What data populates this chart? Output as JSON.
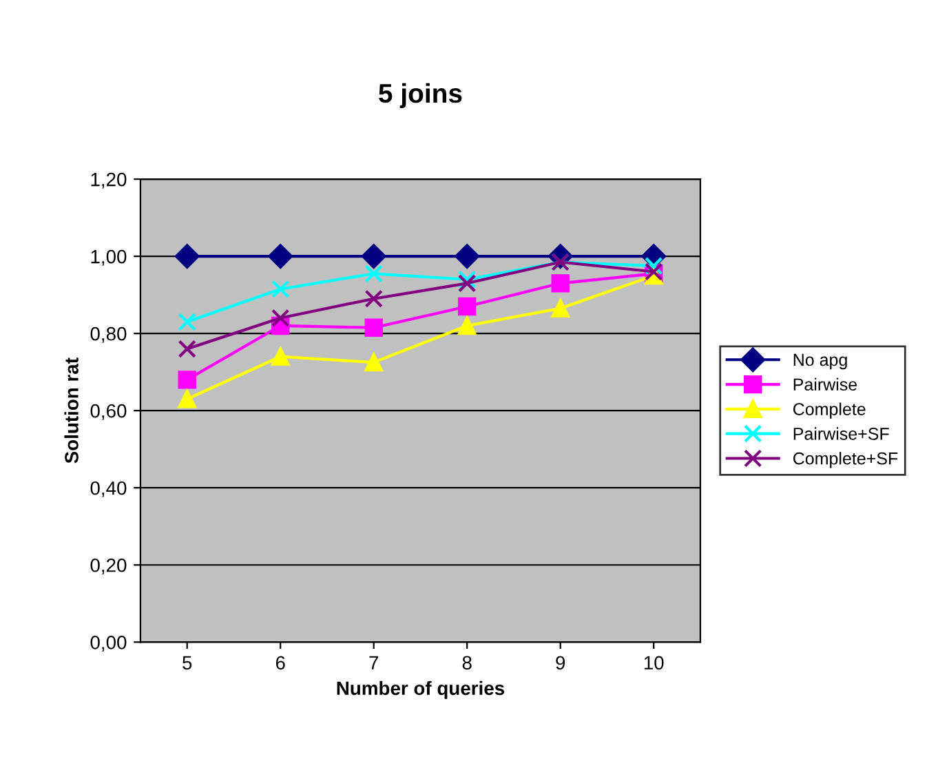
{
  "chart_data": {
    "type": "line",
    "title": "5 joins",
    "xlabel": "Number of queries",
    "ylabel": "Solution rat",
    "categories": [
      "5",
      "6",
      "7",
      "8",
      "9",
      "10"
    ],
    "series": [
      {
        "name": "No apg",
        "color": "#000080",
        "marker": "diamond",
        "values": [
          1.0,
          1.0,
          1.0,
          1.0,
          1.0,
          1.0
        ]
      },
      {
        "name": "Pairwise",
        "color": "#ff00ff",
        "marker": "square",
        "values": [
          0.68,
          0.82,
          0.815,
          0.87,
          0.93,
          0.955
        ]
      },
      {
        "name": "Complete",
        "color": "#ffff00",
        "marker": "triangle",
        "values": [
          0.63,
          0.74,
          0.725,
          0.82,
          0.865,
          0.95
        ]
      },
      {
        "name": "Pairwise+SF",
        "color": "#00ffff",
        "marker": "cross",
        "values": [
          0.83,
          0.915,
          0.955,
          0.94,
          0.985,
          0.975
        ]
      },
      {
        "name": "Complete+SF",
        "color": "#800080",
        "marker": "cross",
        "values": [
          0.76,
          0.84,
          0.89,
          0.93,
          0.985,
          0.96
        ]
      }
    ],
    "ylim": [
      0,
      1.2
    ],
    "yticks": [
      {
        "value": 0,
        "label": "0,00"
      },
      {
        "value": 0.2,
        "label": "0,20"
      },
      {
        "value": 0.4,
        "label": "0,40"
      },
      {
        "value": 0.6,
        "label": "0,60"
      },
      {
        "value": 0.8,
        "label": "0,80"
      },
      {
        "value": 1.0,
        "label": "1,00"
      },
      {
        "value": 1.2,
        "label": "1,20"
      }
    ],
    "grid": "y",
    "legend": "right",
    "line_style": "solid"
  }
}
